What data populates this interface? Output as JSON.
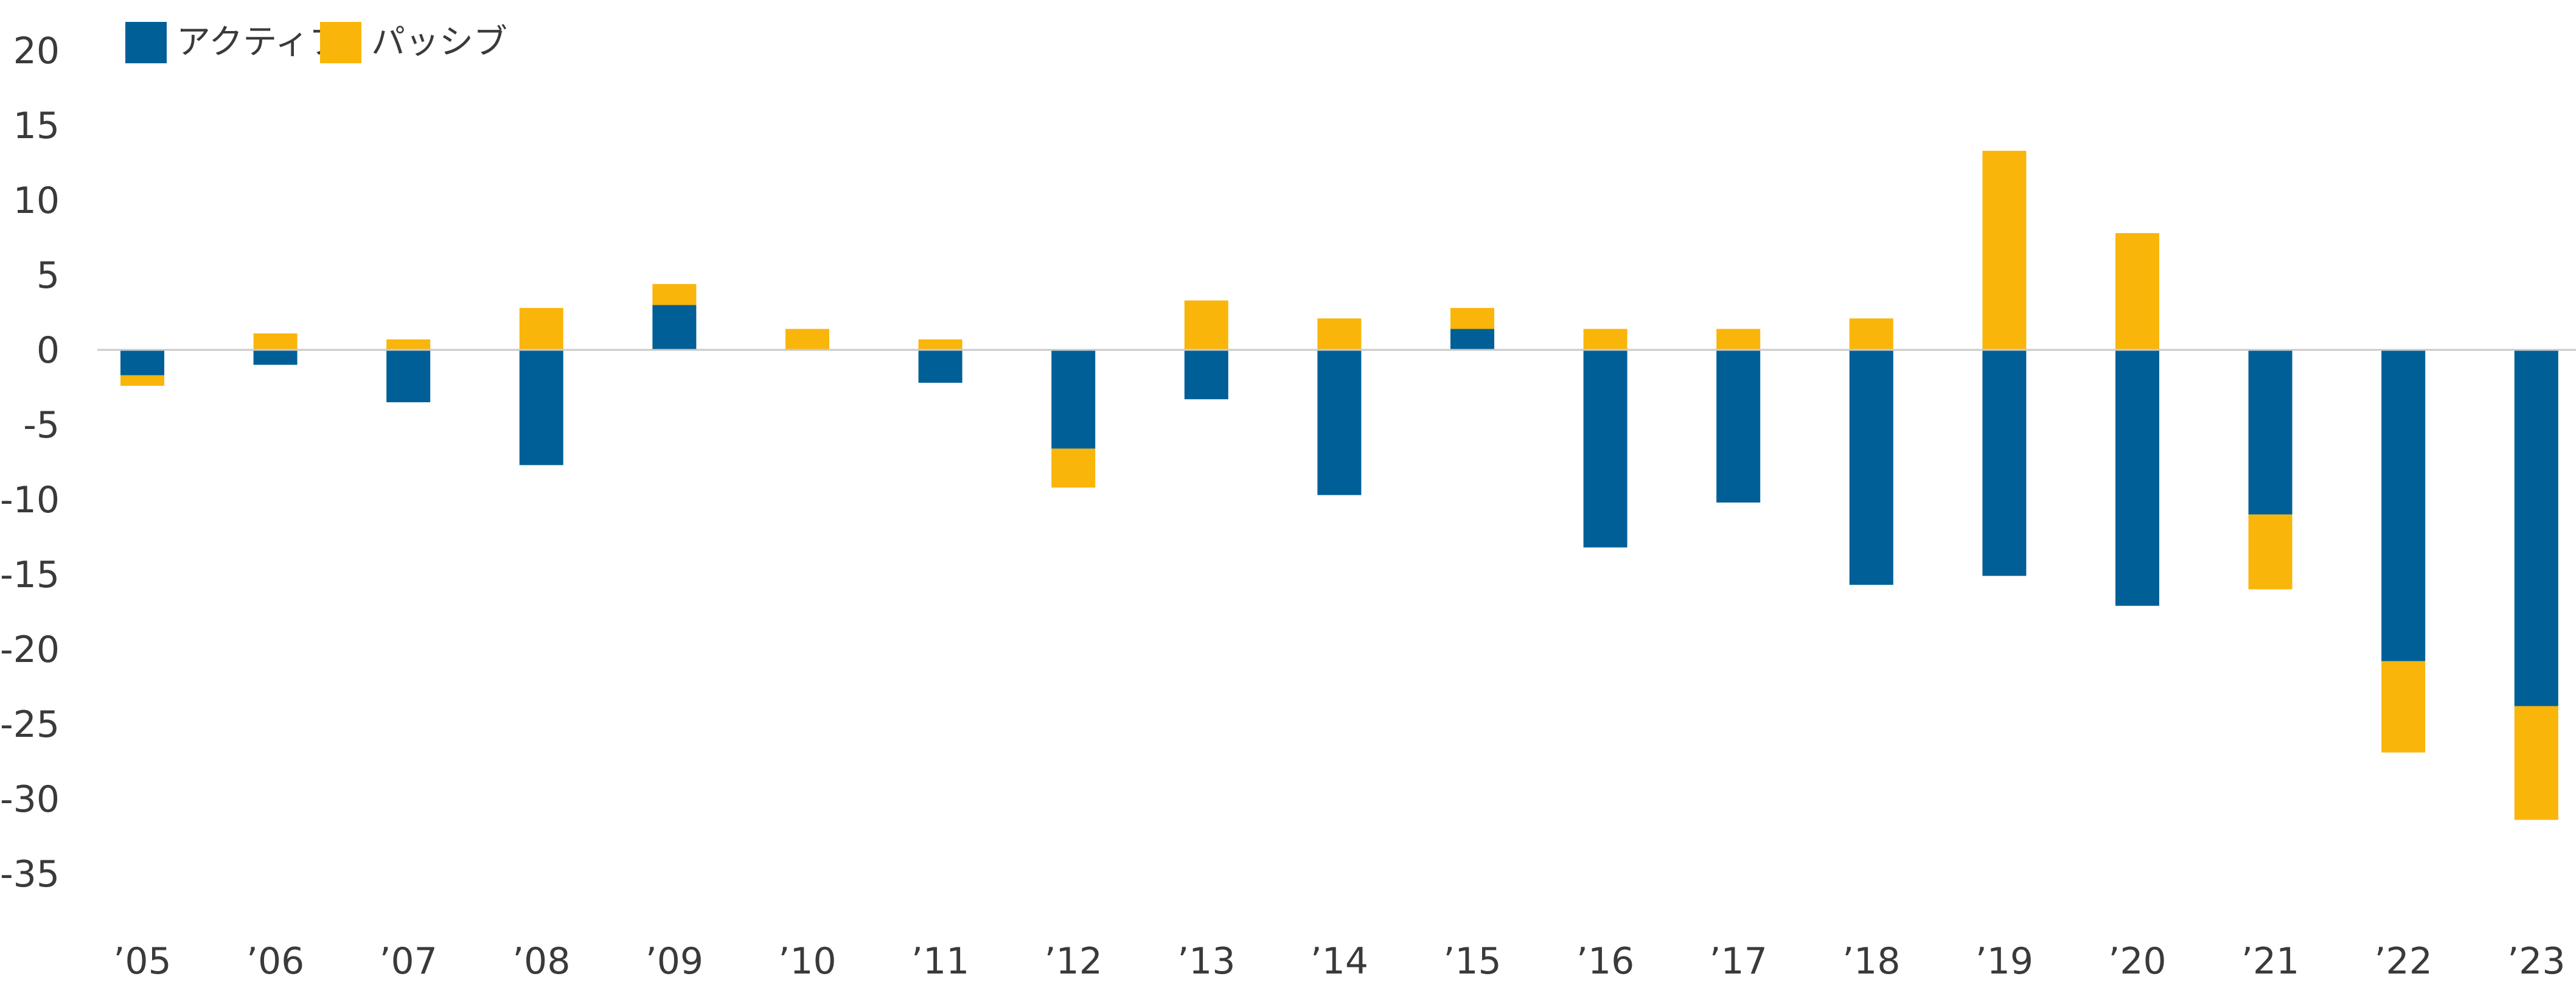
{
  "colors": {
    "active": "#005f96",
    "passive": "#f9b50a",
    "zero_line": "#c9c9c9"
  },
  "chart_data": {
    "type": "bar",
    "stacked": true,
    "categories": [
      "’05",
      "’06",
      "’07",
      "’08",
      "’09",
      "’10",
      "’11",
      "’12",
      "’13",
      "’14",
      "’15",
      "’16",
      "’17",
      "’18",
      "’19",
      "’20",
      "’21",
      "’22",
      "’23"
    ],
    "series": [
      {
        "name": "アクティブ",
        "color": "#005f96",
        "values": [
          -1.7,
          -1.0,
          -3.5,
          -7.7,
          3.0,
          0,
          -2.2,
          -6.6,
          -3.3,
          -9.7,
          1.4,
          -13.2,
          -10.2,
          -15.7,
          -15.1,
          -17.1,
          -11.0,
          -20.8,
          -23.8
        ]
      },
      {
        "name": "パッシブ",
        "color": "#f9b50a",
        "values": [
          -0.7,
          1.1,
          0.7,
          2.8,
          1.4,
          1.4,
          0.7,
          -2.6,
          3.3,
          2.1,
          1.4,
          1.4,
          1.4,
          2.1,
          13.3,
          7.8,
          -5.0,
          -6.1,
          -7.6
        ]
      }
    ],
    "ylim": [
      -35,
      20
    ],
    "yticks": [
      20,
      15,
      10,
      5,
      0,
      -5,
      -10,
      -15,
      -20,
      -25,
      -30,
      -35
    ],
    "xlabel": "",
    "ylabel": "",
    "legend_position": "top-left",
    "grid": false
  }
}
